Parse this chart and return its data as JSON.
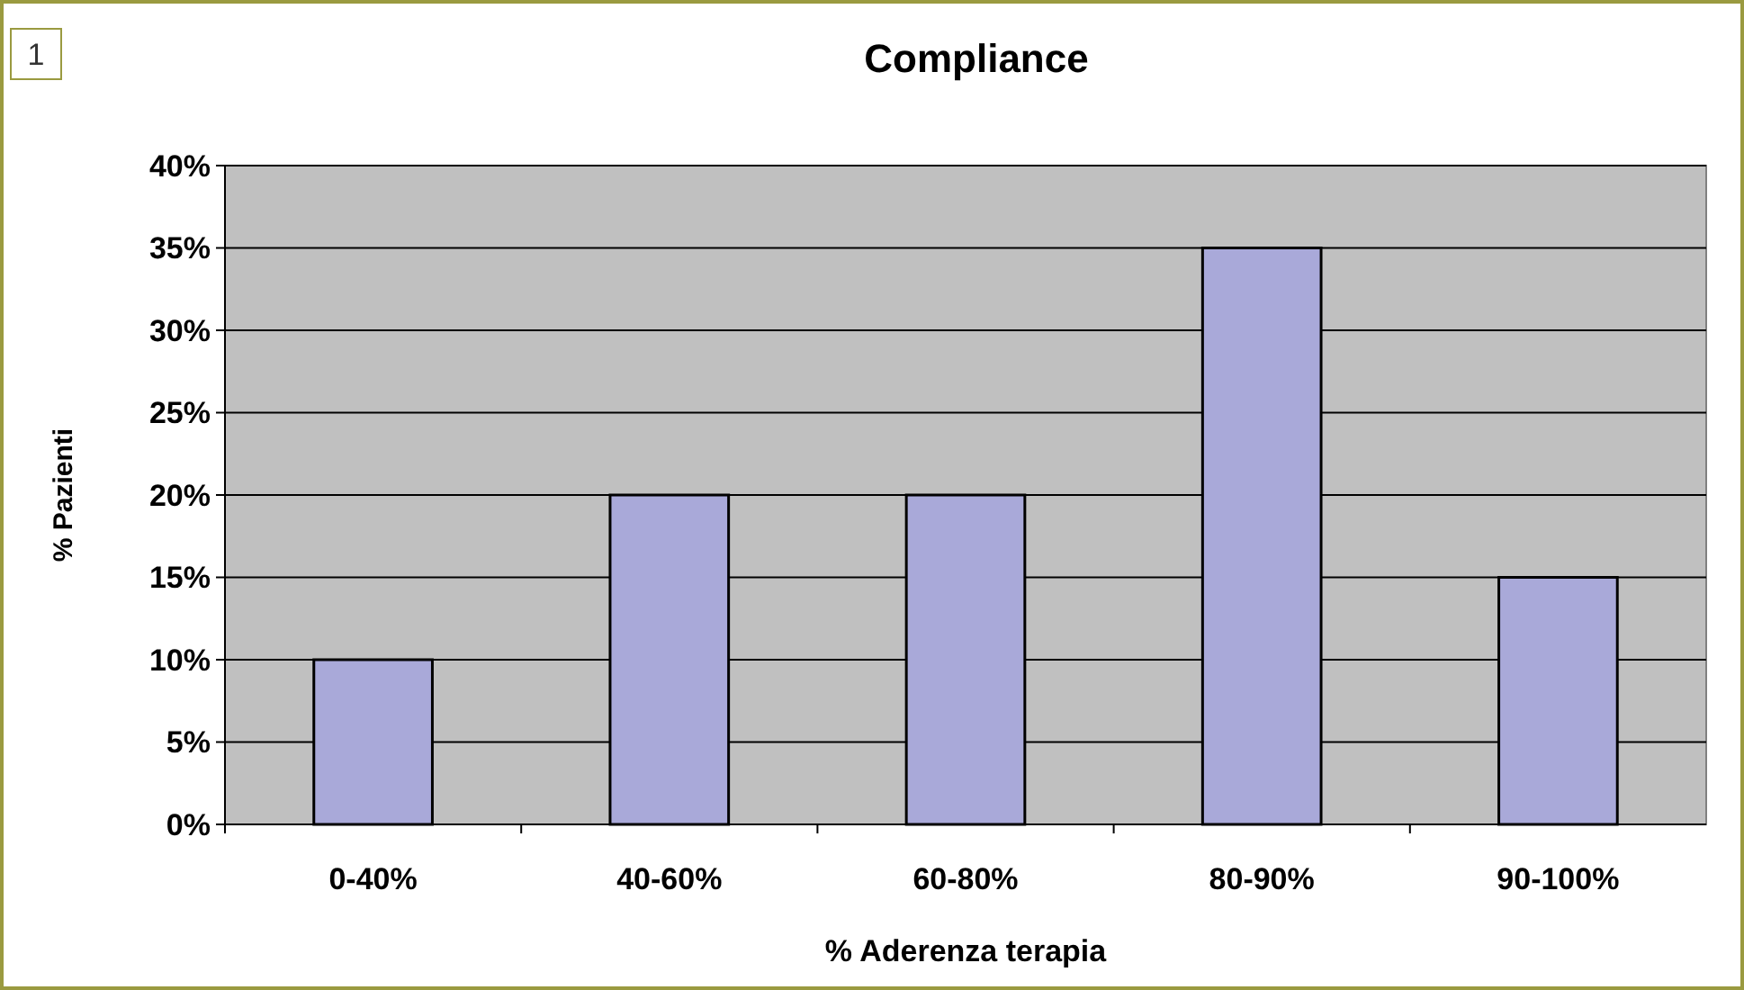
{
  "chart_data": {
    "type": "bar",
    "title": "Compliance",
    "xlabel": "% Aderenza terapia",
    "ylabel": "% Pazienti",
    "categories": [
      "0-40%",
      "40-60%",
      "60-80%",
      "80-90%",
      "90-100%"
    ],
    "values": [
      10,
      20,
      20,
      35,
      15
    ],
    "color": "#a9a9d9",
    "ylim": [
      0,
      40
    ],
    "yticks": [
      {
        "value": 0,
        "label": "0%"
      },
      {
        "value": 5,
        "label": "5%"
      },
      {
        "value": 10,
        "label": "10%"
      },
      {
        "value": 15,
        "label": "15%"
      },
      {
        "value": 20,
        "label": "20%"
      },
      {
        "value": 25,
        "label": "25%"
      },
      {
        "value": 30,
        "label": "30%"
      },
      {
        "value": 35,
        "label": "35%"
      },
      {
        "value": 40,
        "label": "40%"
      }
    ],
    "grid": "y",
    "annotations": [
      "1"
    ]
  }
}
